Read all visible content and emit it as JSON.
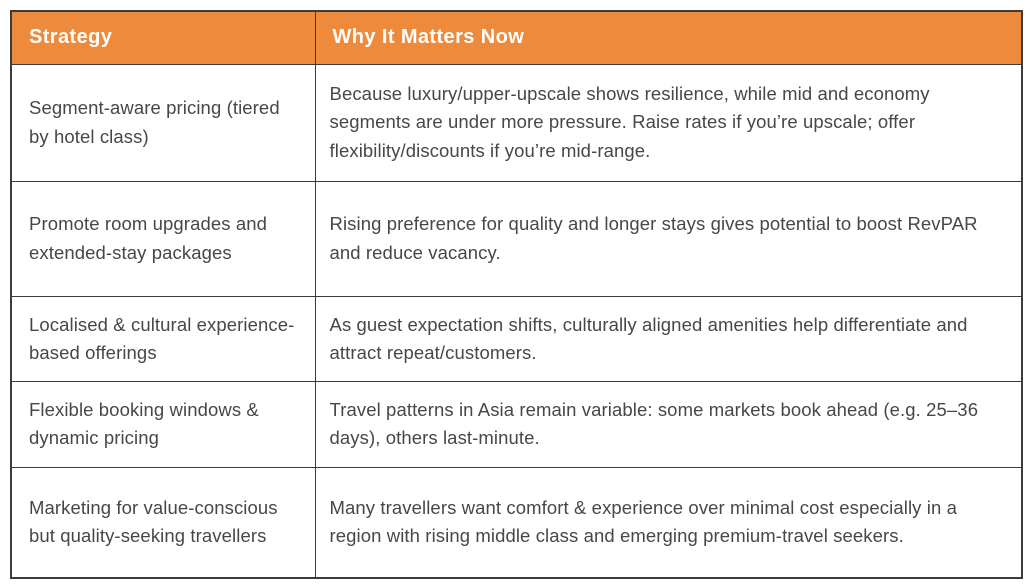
{
  "table": {
    "header": {
      "strategy": "Strategy",
      "why": "Why It Matters Now"
    },
    "rows": [
      {
        "strategy": "Segment-aware pricing (tiered by hotel class)",
        "why": "Because luxury/upper-upscale shows resilience, while mid and economy segments are under more pressure. Raise rates if you’re upscale; offer flexibility/discounts if you’re mid-range."
      },
      {
        "strategy": "Promote room upgrades and extended-stay packages",
        "why": "Rising preference for quality and longer stays gives potential to boost RevPAR and reduce vacancy."
      },
      {
        "strategy": "Localised & cultural experience-based offerings",
        "why": "As guest expectation shifts, culturally aligned amenities help differentiate and attract repeat/customers."
      },
      {
        "strategy": "Flexible booking windows & dynamic pricing",
        "why": "Travel patterns in Asia remain variable: some markets book ahead (e.g. 25–36 days), others last-minute."
      },
      {
        "strategy": "Marketing for value-conscious but quality-seeking travellers",
        "why": "Many travellers want comfort & experience over minimal cost especially in a region with rising middle class and emerging premium-travel seekers."
      }
    ]
  },
  "colors": {
    "header_bg": "#ed8a3c",
    "header_text": "#ffffff",
    "body_text": "#474747",
    "border": "#3b3b3b",
    "page_bg": "#ffffff"
  }
}
